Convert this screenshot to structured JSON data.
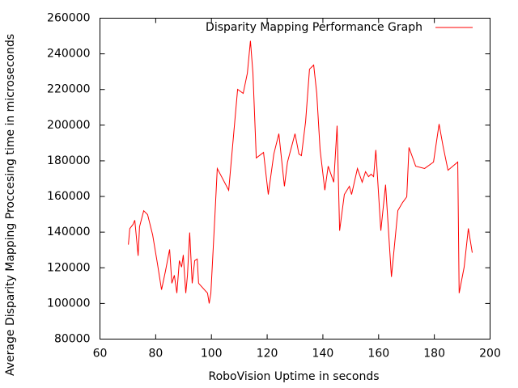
{
  "chart_data": {
    "type": "line",
    "title": "Disparity Mapping Performance Graph",
    "x_label": "RoboVision Uptime in seconds",
    "y_label": "Average Disparity Mapping Proccesing time in microseconds",
    "x": [
      70.2,
      70.7,
      71.9,
      72.5,
      73.7,
      74.2,
      75.7,
      77.1,
      78.9,
      80.6,
      82.1,
      83.5,
      85.0,
      85.8,
      86.7,
      87.6,
      88.5,
      89.3,
      89.9,
      90.8,
      91.4,
      92.2,
      93.1,
      94.0,
      94.9,
      95.4,
      98.6,
      99.2,
      99.8,
      101.2,
      102.1,
      106.2,
      109.4,
      111.4,
      112.9,
      114.0,
      114.9,
      116.1,
      118.7,
      120.4,
      122.4,
      124.2,
      126.2,
      127.3,
      130.0,
      131.4,
      132.3,
      133.8,
      135.2,
      136.7,
      137.8,
      139.0,
      140.7,
      141.9,
      143.9,
      145.1,
      146.0,
      147.7,
      149.5,
      150.3,
      152.4,
      154.1,
      155.3,
      156.4,
      157.3,
      158.2,
      159.0,
      160.8,
      162.5,
      164.6,
      166.9,
      168.6,
      170.1,
      170.9,
      173.3,
      176.5,
      179.7,
      181.7,
      183.1,
      184.9,
      188.4,
      188.9,
      190.7,
      192.2,
      193.6
    ],
    "series": [
      {
        "name": "Disparity Mapping Performance Graph",
        "color": "#ff0000",
        "values": [
          133000,
          142000,
          144400,
          146700,
          126700,
          143000,
          152000,
          149800,
          138500,
          122600,
          107700,
          118100,
          130300,
          111300,
          115800,
          105800,
          124000,
          120400,
          127200,
          105800,
          115800,
          139800,
          111300,
          124000,
          124900,
          111300,
          105800,
          100000,
          105800,
          147600,
          175700,
          163500,
          220100,
          217800,
          229200,
          247300,
          229200,
          181600,
          184700,
          161100,
          183800,
          195200,
          165700,
          179300,
          195200,
          183800,
          182900,
          202000,
          231400,
          233700,
          217800,
          186100,
          163500,
          177000,
          168000,
          199700,
          140800,
          161100,
          165700,
          161100,
          175700,
          168000,
          173900,
          171100,
          172500,
          171100,
          186100,
          140800,
          166600,
          114900,
          152100,
          156600,
          159800,
          187500,
          177000,
          175700,
          179300,
          200600,
          188400,
          174700,
          179300,
          105800,
          120400,
          142100,
          128500
        ]
      }
    ],
    "xlim": [
      60,
      200
    ],
    "xticks": [
      60,
      80,
      100,
      120,
      140,
      160,
      180,
      200
    ],
    "ylim": [
      80000,
      260000
    ],
    "yticks": [
      80000,
      100000,
      120000,
      140000,
      160000,
      180000,
      200000,
      220000,
      240000,
      260000
    ],
    "grid": false,
    "legend": "top-right"
  }
}
